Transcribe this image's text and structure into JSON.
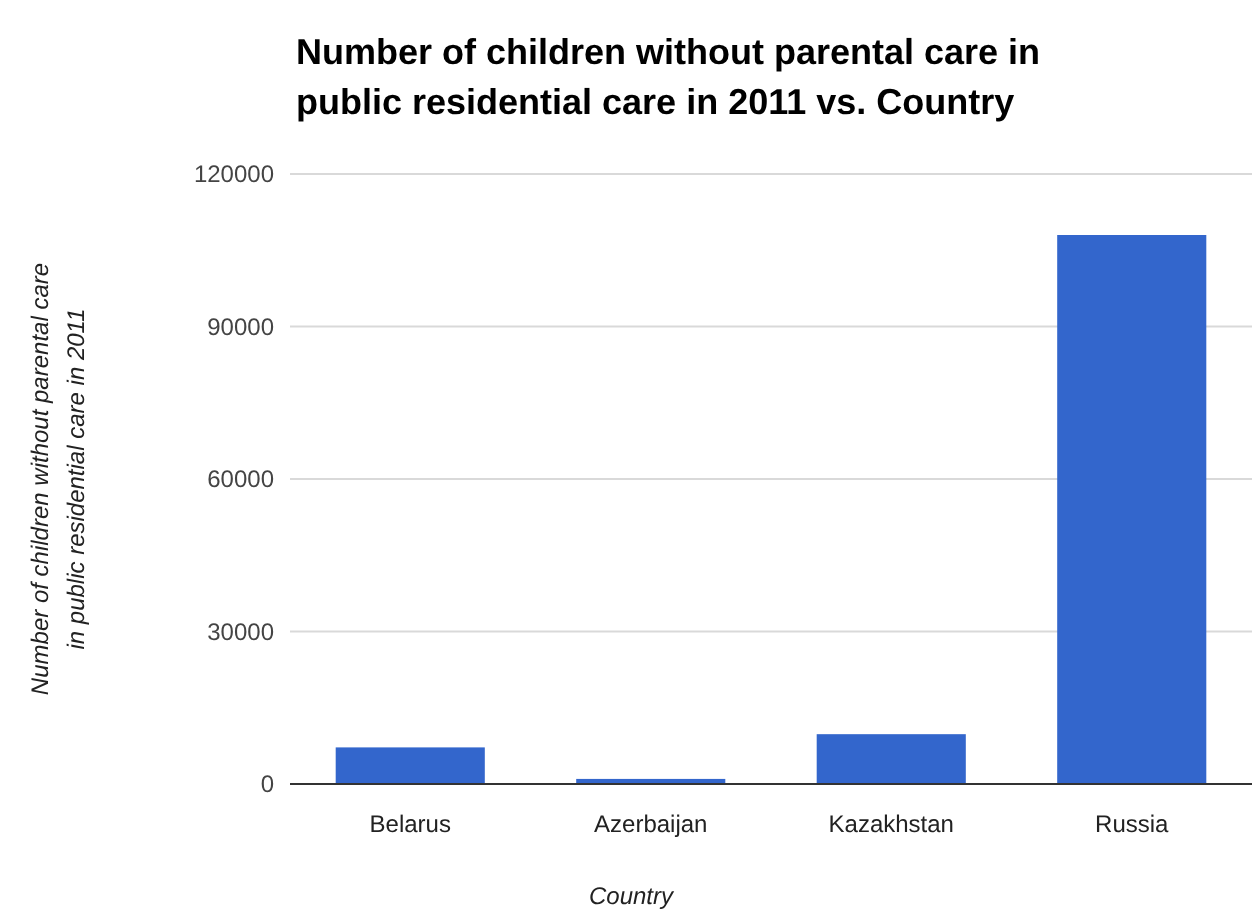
{
  "chart_data": {
    "type": "bar",
    "title": "Number of children without parental care in public residential care in 2011 vs. Country",
    "xlabel": "Country",
    "ylabel": "Number of children without parental care in public residential care in 2011",
    "categories": [
      "Belarus",
      "Azerbaijan",
      "Kazakhstan",
      "Russia"
    ],
    "values": [
      7200,
      1000,
      9800,
      108000
    ],
    "color": "#3366cc",
    "ylim": [
      0,
      120000
    ],
    "yticks": [
      0,
      30000,
      60000,
      90000,
      120000
    ],
    "grid": "y"
  }
}
